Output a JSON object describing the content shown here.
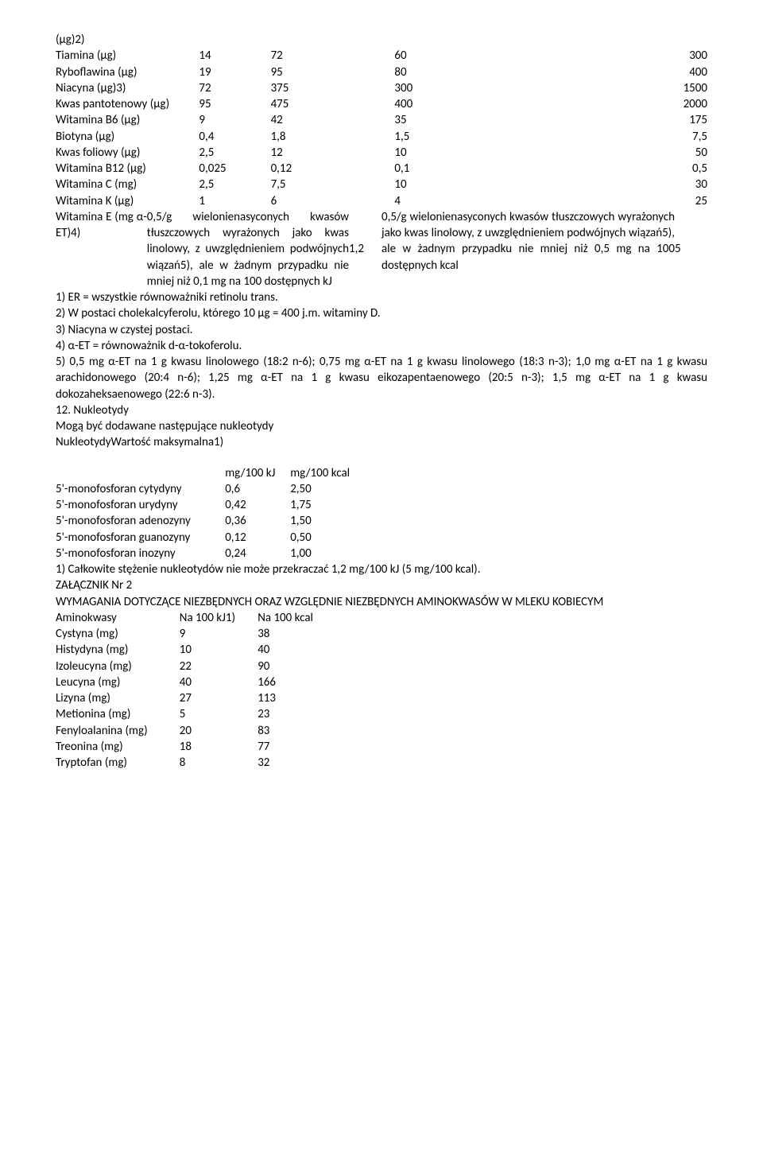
{
  "vitamins": [
    {
      "label": "(μg)2)",
      "v1": "",
      "v2": "",
      "v3": "",
      "v4": ""
    },
    {
      "label": "Tiamina (μg)",
      "v1": "14",
      "v2": "72",
      "v3": "60",
      "v4": "300"
    },
    {
      "label": "Ryboflawina (μg)",
      "v1": "19",
      "v2": "95",
      "v3": "80",
      "v4": "400"
    },
    {
      "label": "Niacyna (μg)3)",
      "v1": "72",
      "v2": "375",
      "v3": "300",
      "v4": "1500"
    },
    {
      "label": "Kwas pantotenowy (μg)",
      "v1": "95",
      "v2": "475",
      "v3": "400",
      "v4": "2000"
    },
    {
      "label": "Witamina B6 (μg)",
      "v1": "9",
      "v2": "42",
      "v3": "35",
      "v4": "175"
    },
    {
      "label": "Biotyna (μg)",
      "v1": "0,4",
      "v2": "1,8",
      "v3": "1,5",
      "v4": "7,5"
    },
    {
      "label": "Kwas foliowy (μg)",
      "v1": "2,5",
      "v2": "12",
      "v3": "10",
      "v4": "50"
    },
    {
      "label": "Witamina B12 (μg)",
      "v1": "0,025",
      "v2": "0,12",
      "v3": "0,1",
      "v4": "0,5"
    },
    {
      "label": "Witamina C (mg)",
      "v1": "2,5",
      "v2": "7,5",
      "v3": "10",
      "v4": "30"
    },
    {
      "label": "Witamina K (μg)",
      "v1": "1",
      "v2": "6",
      "v3": "4",
      "v4": "25"
    }
  ],
  "vitE": {
    "label": "Witamina E (mg α-ET)4)",
    "leftText": "0,5/g wielonienasyconych kwasów tłuszczowych wyrażonych jako kwas linolowy, z uwzględnieniem podwójnych wiązań5), ale w żadnym przypadku nie mniej niż 0,1 mg na 100 dostępnych kJ",
    "leftVal": "1,2",
    "rightText": "0,5/g wielonienasyconych kwasów tłuszczowych wyrażonych jako kwas linolowy, z uwzględnieniem podwójnych wiązań5), ale w żadnym przypadku nie mniej niż 0,5 mg na 100 dostępnych kcal",
    "rightVal": "5"
  },
  "footnotes": [
    "1) ER = wszystkie równoważniki retinolu trans.",
    "2) W postaci cholekalcyferolu, którego 10 μg = 400 j.m. witaminy D.",
    "3) Niacyna w czystej postaci.",
    "4) α-ET = równoważnik d-α-tokoferolu.",
    "5) 0,5 mg α-ET na 1 g kwasu linolowego (18:2 n-6); 0,75 mg α-ET na 1 g kwasu linolowego (18:3 n-3); 1,0 mg α-ET na 1 g kwasu arachidonowego (20:4 n-6); 1,25 mg α-ET na 1 g kwasu eikozapentaenowego (20:5 n-3); 1,5 mg α-ET na 1 g kwasu dokozaheksaenowego (22:6 n-3)."
  ],
  "nSection": {
    "title": "12. Nukleotydy",
    "line1": "Mogą być dodawane następujące nukleotydy",
    "line2": "NukleotydyWartość maksymalna1)"
  },
  "nucHeader": {
    "a": "mg/100 kJ",
    "b": "mg/100 kcal"
  },
  "nucleotides": [
    {
      "name": "5'-monofosforan cytydyny",
      "a": "0,6",
      "b": "2,50"
    },
    {
      "name": "5'-monofosforan urydyny",
      "a": "0,42",
      "b": "1,75"
    },
    {
      "name": "5'-monofosforan adenozyny",
      "a": "0,36",
      "b": "1,50"
    },
    {
      "name": "5'-monofosforan guanozyny",
      "a": "0,12",
      "b": "0,50"
    },
    {
      "name": "5'-monofosforan inozyny",
      "a": "0,24",
      "b": "1,00"
    }
  ],
  "nucFoot": "1) Całkowite stężenie nukleotydów nie może przekraczać 1,2 mg/100 kJ (5 mg/100 kcal).",
  "annex": {
    "title": "ZAŁĄCZNIK Nr 2",
    "heading": "WYMAGANIA DOTYCZĄCE NIEZBĘDNYCH ORAZ WZGLĘDNIE NIEZBĘDNYCH AMINOKWASÓW W MLEKU KOBIECYM",
    "colA": "Aminokwasy",
    "colB": "Na 100 kJ1)",
    "colC": "Na 100 kcal"
  },
  "aminos": [
    {
      "name": "Cystyna (mg)",
      "a": "9",
      "b": "38"
    },
    {
      "name": "Histydyna (mg)",
      "a": "10",
      "b": "40"
    },
    {
      "name": "Izoleucyna (mg)",
      "a": "22",
      "b": "90"
    },
    {
      "name": "Leucyna (mg)",
      "a": "40",
      "b": "166"
    },
    {
      "name": "Lizyna (mg)",
      "a": "27",
      "b": "113"
    },
    {
      "name": "Metionina (mg)",
      "a": "5",
      "b": "23"
    },
    {
      "name": "Fenyloalanina (mg)",
      "a": "20",
      "b": "83"
    },
    {
      "name": "Treonina (mg)",
      "a": "18",
      "b": "77"
    },
    {
      "name": "Tryptofan (mg)",
      "a": "8",
      "b": "32"
    }
  ]
}
